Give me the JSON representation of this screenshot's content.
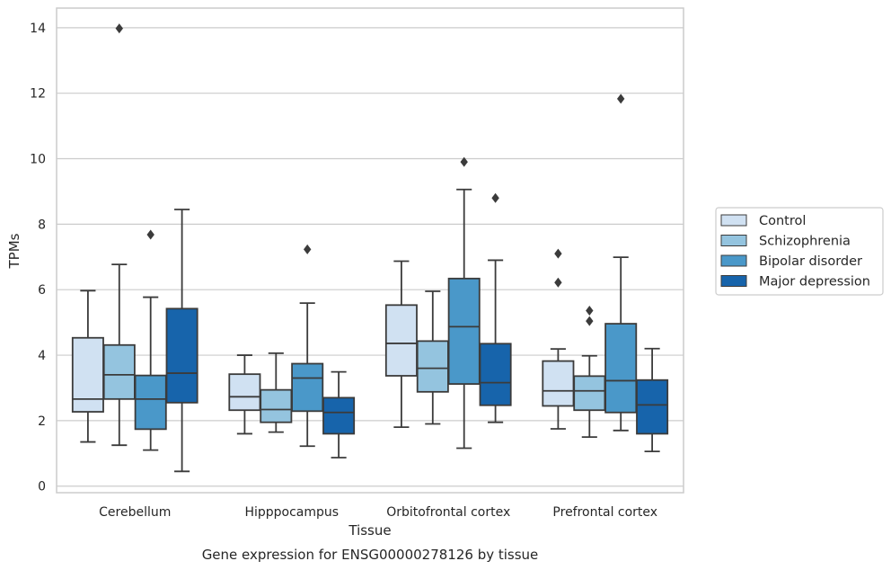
{
  "caption": "Gene expression for ENSG00000278126 by tissue",
  "chart_data": {
    "type": "box",
    "title": "",
    "xlabel": "Tissue",
    "ylabel": "TPMs",
    "ylim": [
      -0.2,
      14.6
    ],
    "yticks": [
      0,
      2,
      4,
      6,
      8,
      10,
      12,
      14
    ],
    "grid": "horizontal",
    "legend_placement": "outside-right",
    "categories": [
      "Cerebellum",
      "Hipppocampus",
      "Orbitofrontal cortex",
      "Prefrontal cortex"
    ],
    "series": [
      {
        "name": "Control",
        "color": "#d0e1f2",
        "boxes": [
          {
            "min": 1.35,
            "q1": 2.27,
            "median": 2.66,
            "q3": 4.53,
            "max": 5.97,
            "outliers": []
          },
          {
            "min": 1.6,
            "q1": 2.32,
            "median": 2.73,
            "q3": 3.42,
            "max": 4.0,
            "outliers": []
          },
          {
            "min": 1.8,
            "q1": 3.37,
            "median": 4.36,
            "q3": 5.53,
            "max": 6.87,
            "outliers": []
          },
          {
            "min": 1.75,
            "q1": 2.45,
            "median": 2.91,
            "q3": 3.82,
            "max": 4.19,
            "outliers": [
              7.1,
              6.22
            ]
          }
        ]
      },
      {
        "name": "Schizophrenia",
        "color": "#94c4df",
        "boxes": [
          {
            "min": 1.25,
            "q1": 2.66,
            "median": 3.4,
            "q3": 4.31,
            "max": 6.77,
            "outliers": [
              13.98
            ]
          },
          {
            "min": 1.65,
            "q1": 1.95,
            "median": 2.34,
            "q3": 2.94,
            "max": 4.06,
            "outliers": []
          },
          {
            "min": 1.9,
            "q1": 2.88,
            "median": 3.6,
            "q3": 4.43,
            "max": 5.95,
            "outliers": []
          },
          {
            "min": 1.5,
            "q1": 2.32,
            "median": 2.91,
            "q3": 3.36,
            "max": 3.98,
            "outliers": [
              5.36,
              5.04
            ]
          }
        ]
      },
      {
        "name": "Bipolar disorder",
        "color": "#4a98c9",
        "boxes": [
          {
            "min": 1.1,
            "q1": 1.74,
            "median": 2.66,
            "q3": 3.38,
            "max": 5.77,
            "outliers": [
              7.68
            ]
          },
          {
            "min": 1.22,
            "q1": 2.29,
            "median": 3.3,
            "q3": 3.74,
            "max": 5.59,
            "outliers": [
              7.23
            ]
          },
          {
            "min": 1.16,
            "q1": 3.12,
            "median": 4.87,
            "q3": 6.34,
            "max": 9.06,
            "outliers": [
              9.9
            ]
          },
          {
            "min": 1.7,
            "q1": 2.25,
            "median": 3.22,
            "q3": 4.96,
            "max": 6.99,
            "outliers": [
              11.83
            ]
          }
        ]
      },
      {
        "name": "Major depression",
        "color": "#1764ab",
        "boxes": [
          {
            "min": 0.45,
            "q1": 2.55,
            "median": 3.45,
            "q3": 5.42,
            "max": 8.45,
            "outliers": []
          },
          {
            "min": 0.87,
            "q1": 1.6,
            "median": 2.25,
            "q3": 2.7,
            "max": 3.49,
            "outliers": []
          },
          {
            "min": 1.95,
            "q1": 2.47,
            "median": 3.16,
            "q3": 4.35,
            "max": 6.9,
            "outliers": [
              8.8
            ]
          },
          {
            "min": 1.06,
            "q1": 1.6,
            "median": 2.48,
            "q3": 3.24,
            "max": 4.2,
            "outliers": []
          }
        ]
      }
    ]
  }
}
